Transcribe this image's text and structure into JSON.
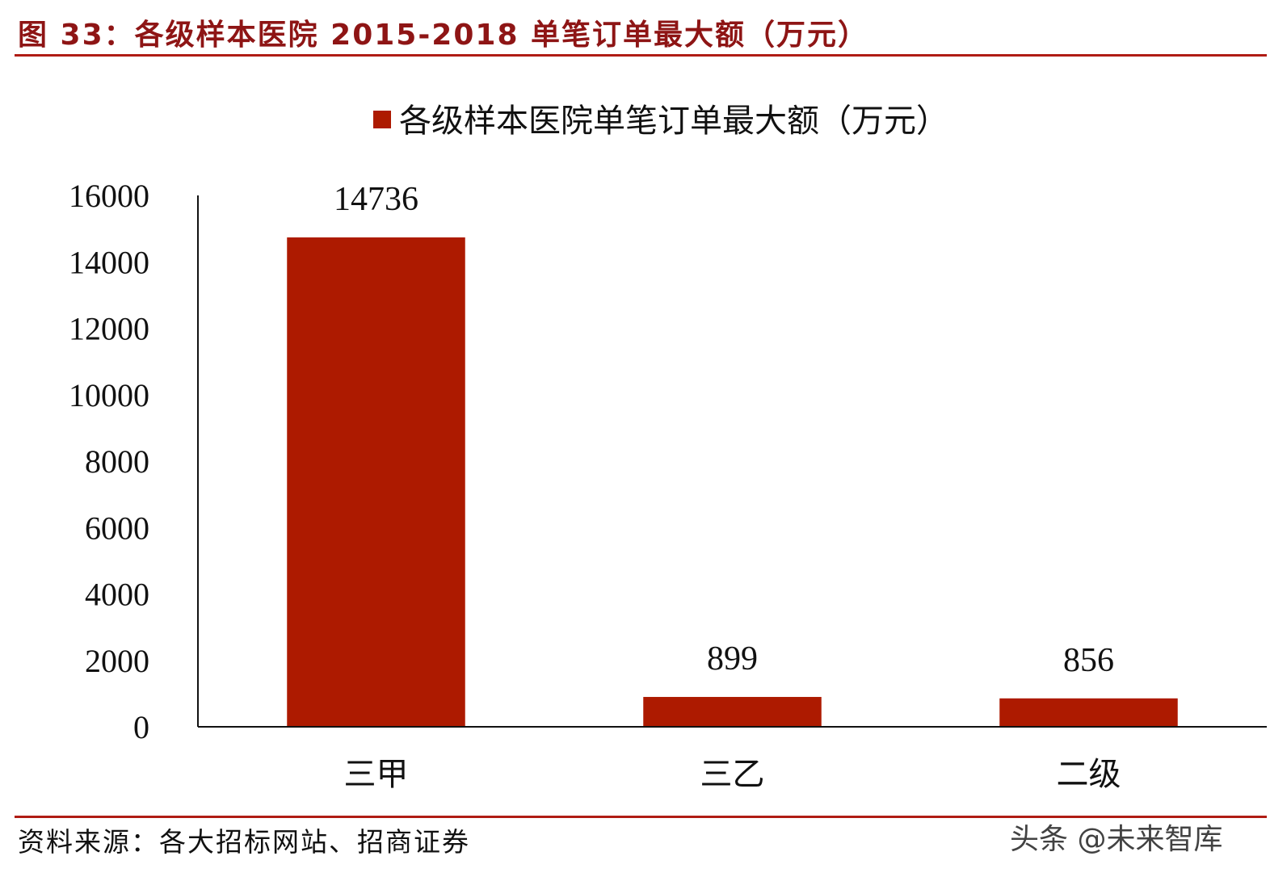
{
  "figure_title": "图 33：各级样本医院 2015-2018 单笔订单最大额（万元）",
  "source": "资料来源：各大招标网站、招商证券",
  "watermark": "头条 @未来智库",
  "colors": {
    "accent": "#b01c14",
    "bar": "#ad1a00",
    "title": "#8e1515"
  },
  "chart_data": {
    "type": "bar",
    "title": "",
    "xlabel": "",
    "ylabel": "",
    "categories": [
      "三甲",
      "三乙",
      "二级"
    ],
    "series": [
      {
        "name": "各级样本医院单笔订单最大额（万元）",
        "values": [
          14736,
          899,
          856
        ]
      }
    ],
    "data_labels": [
      "14736",
      "899",
      "856"
    ],
    "yticks": [
      "0",
      "2000",
      "4000",
      "6000",
      "8000",
      "10000",
      "12000",
      "14000",
      "16000"
    ],
    "ylim": [
      0,
      16000
    ],
    "grid": false,
    "legend": "top-center"
  }
}
